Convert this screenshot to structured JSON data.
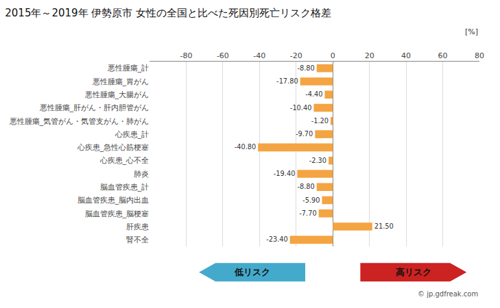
{
  "chart_data": {
    "type": "bar",
    "orientation": "horizontal",
    "title": "2015年～2019年 伊勢原市 女性の全国と比べた死因別死亡リスク格差",
    "categories": [
      "悪性腫瘍_計",
      "悪性腫瘍_胃がん",
      "悪性腫瘍_大腸がん",
      "悪性腫瘍_肝がん・肝内胆管がん",
      "悪性腫瘍_気管がん・気管支がん・肺がん",
      "心疾患_計",
      "心疾患_急性心筋梗塞",
      "心疾患_心不全",
      "肺炎",
      "脳血管疾患_計",
      "脳血管疾患_脳内出血",
      "脳血管疾患_脳梗塞",
      "肝疾患",
      "腎不全"
    ],
    "values": [
      -8.8,
      -17.8,
      -4.4,
      -10.4,
      -1.2,
      -9.7,
      -40.8,
      -2.3,
      -19.4,
      -8.8,
      -5.9,
      -7.7,
      21.5,
      -23.4
    ],
    "value_labels": [
      "-8.80",
      "-17.80",
      "-4.40",
      "-10.40",
      "-1.20",
      "-9.70",
      "-40.80",
      "-2.30",
      "-19.40",
      "-8.80",
      "-5.90",
      "-7.70",
      "21.50",
      "-23.40"
    ],
    "data_labels": true,
    "color": "#F4A442",
    "xlim": [
      -100,
      80
    ],
    "xticks": [
      -80,
      -60,
      -40,
      -20,
      0,
      20,
      40,
      60,
      80
    ],
    "grid": true,
    "annotations": [
      "[%]",
      "低リスク",
      "高リスク",
      "© jp.gdfreak.com"
    ]
  }
}
